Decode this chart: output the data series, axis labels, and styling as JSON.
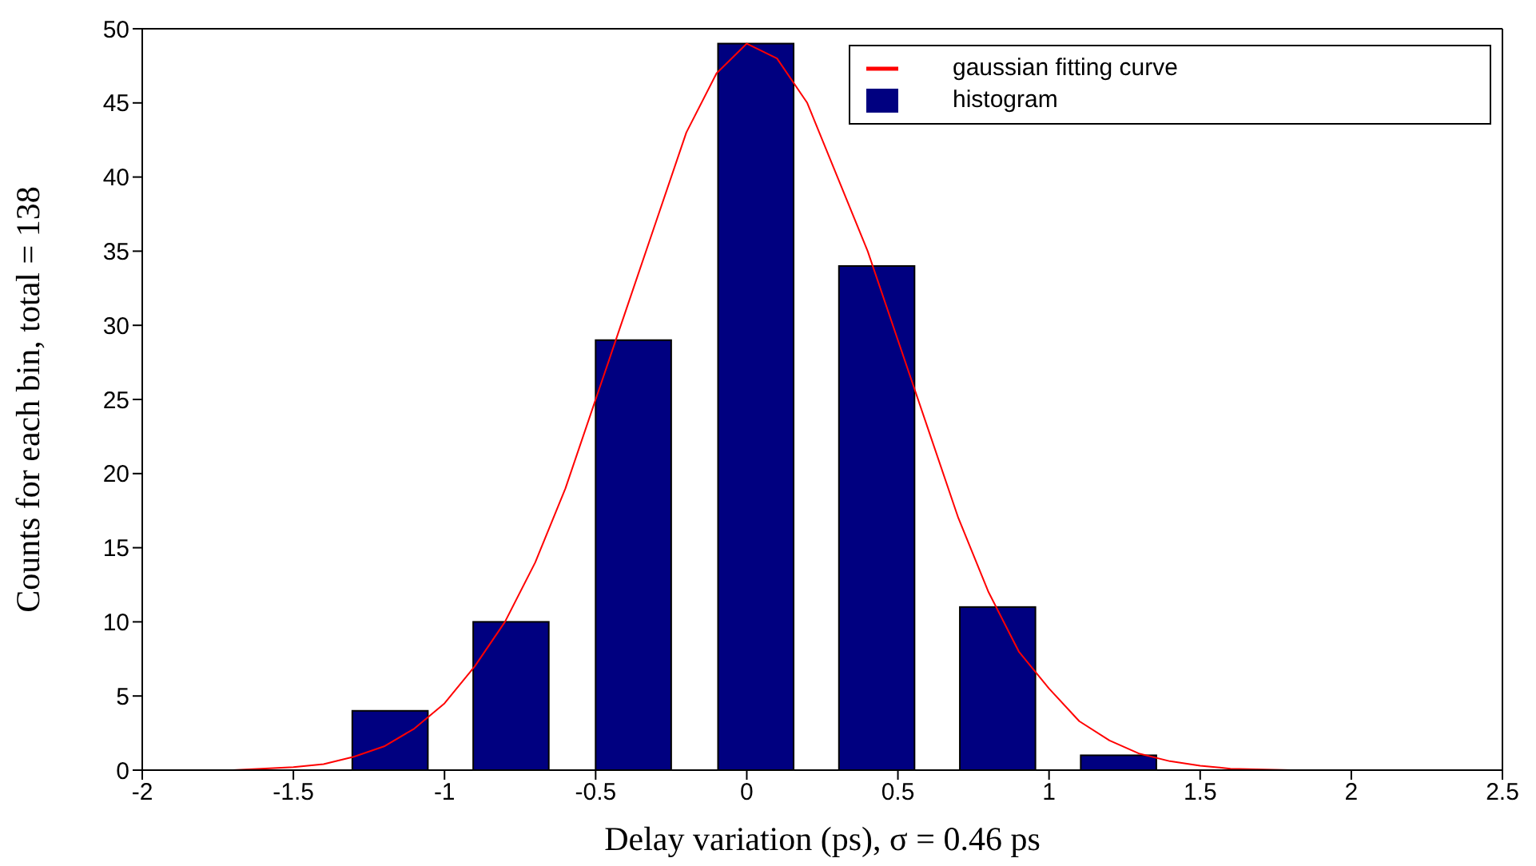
{
  "chart_data": {
    "type": "bar",
    "xlabel": "Delay variation (ps), σ = 0.46 ps",
    "ylabel": "Counts for each bin, total = 138",
    "xlim": [
      -2,
      2.5
    ],
    "xticks": [
      -2,
      -1.5,
      -1,
      -0.5,
      0,
      0.5,
      1,
      1.5,
      2,
      2.5
    ],
    "ylim": [
      0,
      50
    ],
    "yticks": [
      0,
      5,
      10,
      15,
      20,
      25,
      30,
      35,
      40,
      45,
      50
    ],
    "grid": false,
    "legend": "top right",
    "series": [
      {
        "name": "histogram",
        "color": "#000080",
        "x": [
          -1.18,
          -0.78,
          -0.375,
          0.03,
          0.43,
          0.83,
          1.23
        ],
        "values": [
          4,
          10,
          29,
          49,
          34,
          11,
          1
        ]
      },
      {
        "name": "gaussian fitting curve",
        "type": "line",
        "color": "#ff0000",
        "x": [
          -1.7,
          -1.5,
          -1.4,
          -1.3,
          -1.2,
          -1.1,
          -1.0,
          -0.9,
          -0.8,
          -0.7,
          -0.6,
          -0.5,
          -0.4,
          -0.3,
          -0.2,
          -0.1,
          0,
          0.1,
          0.2,
          0.3,
          0.4,
          0.5,
          0.6,
          0.7,
          0.8,
          0.9,
          1.0,
          1.1,
          1.2,
          1.3,
          1.4,
          1.5,
          1.6,
          1.8,
          2.0
        ],
        "values": [
          0,
          0.2,
          0.4,
          0.9,
          1.6,
          2.8,
          4.5,
          7,
          10,
          14,
          19,
          25,
          31,
          37,
          43,
          47,
          49,
          48,
          45,
          40,
          35,
          29,
          23,
          17,
          12,
          8,
          5.5,
          3.3,
          2,
          1.1,
          0.6,
          0.3,
          0.1,
          0,
          0
        ]
      }
    ]
  }
}
